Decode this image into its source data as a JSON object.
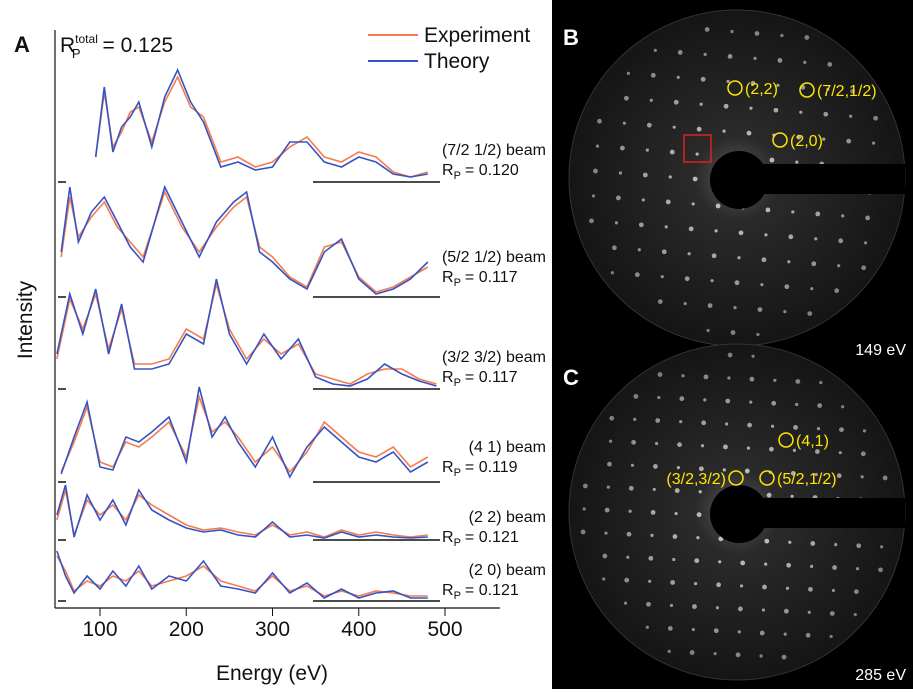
{
  "chart_data": {
    "type": "line",
    "panel_label": "A",
    "title": {
      "symbol": "R",
      "subscript": "P",
      "superscript": "total",
      "value": "= 0.125"
    },
    "x_label": "Energy (eV)",
    "y_label": "Intensity",
    "xlim": [
      48,
      565
    ],
    "xticks": [
      100,
      200,
      300,
      400,
      500
    ],
    "series": [
      {
        "name": "Experiment",
        "color": "#f47c50"
      },
      {
        "name": "Theory",
        "color": "#3553c4"
      }
    ],
    "rp_symbol": "R",
    "rp_subscript": "P",
    "beams": [
      {
        "name": "(7/2  1/2) beam",
        "rp": "= 0.120",
        "x": [
          95,
          105,
          115,
          125,
          135,
          145,
          160,
          175,
          190,
          205,
          220,
          240,
          260,
          280,
          300,
          320,
          340,
          360,
          380,
          400,
          420,
          440,
          460,
          480
        ],
        "curves": [
          [
            25,
            90,
            35,
            50,
            70,
            75,
            40,
            80,
            105,
            75,
            65,
            20,
            25,
            15,
            20,
            35,
            45,
            25,
            20,
            30,
            25,
            10,
            5,
            10
          ],
          [
            25,
            95,
            30,
            55,
            65,
            80,
            35,
            85,
            112,
            80,
            60,
            15,
            20,
            12,
            15,
            40,
            40,
            20,
            15,
            25,
            20,
            8,
            5,
            8
          ]
        ]
      },
      {
        "name": "(5/2  1/2) beam",
        "rp": "= 0.117",
        "x": [
          55,
          65,
          75,
          90,
          105,
          120,
          135,
          150,
          175,
          195,
          215,
          235,
          255,
          270,
          285,
          300,
          320,
          340,
          360,
          380,
          400,
          420,
          440,
          460,
          480
        ],
        "curves": [
          [
            40,
            100,
            60,
            80,
            95,
            70,
            55,
            40,
            105,
            70,
            45,
            70,
            90,
            100,
            50,
            40,
            20,
            10,
            50,
            55,
            20,
            5,
            10,
            20,
            30
          ],
          [
            45,
            110,
            55,
            85,
            100,
            75,
            50,
            35,
            110,
            75,
            40,
            75,
            95,
            105,
            45,
            35,
            18,
            8,
            45,
            58,
            18,
            3,
            8,
            18,
            35
          ]
        ]
      },
      {
        "name": "(3/2  3/2) beam",
        "rp": "= 0.117",
        "x": [
          50,
          65,
          80,
          95,
          110,
          125,
          140,
          160,
          180,
          200,
          220,
          235,
          250,
          270,
          290,
          310,
          330,
          350,
          370,
          390,
          410,
          430,
          450,
          470,
          490
        ],
        "curves": [
          [
            30,
            90,
            60,
            95,
            40,
            80,
            25,
            25,
            30,
            60,
            50,
            105,
            60,
            30,
            50,
            35,
            45,
            15,
            10,
            5,
            15,
            20,
            20,
            10,
            5
          ],
          [
            35,
            95,
            55,
            100,
            35,
            85,
            20,
            20,
            25,
            55,
            45,
            110,
            55,
            25,
            55,
            30,
            50,
            12,
            5,
            3,
            10,
            25,
            15,
            8,
            3
          ]
        ]
      },
      {
        "name": "(4  1) beam",
        "rp": "= 0.119",
        "x": [
          55,
          70,
          85,
          100,
          115,
          130,
          145,
          160,
          180,
          200,
          215,
          230,
          245,
          260,
          280,
          300,
          320,
          340,
          360,
          380,
          400,
          420,
          440,
          460,
          480
        ],
        "curves": [
          [
            10,
            40,
            75,
            20,
            15,
            40,
            35,
            45,
            60,
            25,
            85,
            50,
            60,
            45,
            20,
            35,
            10,
            30,
            60,
            45,
            30,
            25,
            35,
            15,
            25
          ],
          [
            8,
            45,
            80,
            15,
            12,
            45,
            40,
            50,
            65,
            20,
            95,
            45,
            65,
            40,
            15,
            45,
            5,
            35,
            55,
            40,
            25,
            20,
            30,
            10,
            20
          ]
        ]
      },
      {
        "name": "(2  2) beam",
        "rp": "= 0.121",
        "x": [
          50,
          60,
          70,
          85,
          100,
          115,
          130,
          145,
          160,
          180,
          200,
          220,
          240,
          260,
          280,
          300,
          320,
          340,
          360,
          380,
          400,
          420,
          440,
          460,
          480
        ],
        "curves": [
          [
            20,
            50,
            5,
            40,
            25,
            35,
            20,
            45,
            35,
            25,
            15,
            10,
            12,
            8,
            5,
            15,
            5,
            8,
            3,
            10,
            5,
            8,
            5,
            3,
            5
          ],
          [
            25,
            55,
            3,
            45,
            20,
            40,
            15,
            50,
            30,
            20,
            12,
            8,
            10,
            5,
            3,
            18,
            3,
            5,
            2,
            8,
            3,
            5,
            3,
            2,
            3
          ]
        ]
      },
      {
        "name": "(2  0) beam",
        "rp": "= 0.121",
        "x": [
          50,
          60,
          70,
          85,
          100,
          115,
          130,
          145,
          160,
          180,
          200,
          220,
          240,
          260,
          280,
          300,
          320,
          340,
          360,
          380,
          400,
          420,
          440,
          460,
          480
        ],
        "curves": [
          [
            45,
            30,
            10,
            20,
            15,
            25,
            20,
            30,
            15,
            20,
            25,
            35,
            20,
            15,
            10,
            25,
            10,
            15,
            5,
            10,
            5,
            10,
            8,
            5,
            5
          ],
          [
            50,
            25,
            8,
            25,
            12,
            30,
            15,
            35,
            12,
            25,
            20,
            40,
            15,
            12,
            8,
            28,
            8,
            18,
            3,
            12,
            3,
            8,
            10,
            3,
            3
          ]
        ]
      }
    ]
  },
  "images": [
    {
      "label": "B",
      "energy": "149 eV",
      "spots": [
        "(2,2)",
        "(7/2,1/2)",
        "(2,0)"
      ]
    },
    {
      "label": "C",
      "energy": "285 eV",
      "spots": [
        "(4,1)",
        "(3/2,3/2)",
        "(5/2,1/2)"
      ]
    }
  ]
}
